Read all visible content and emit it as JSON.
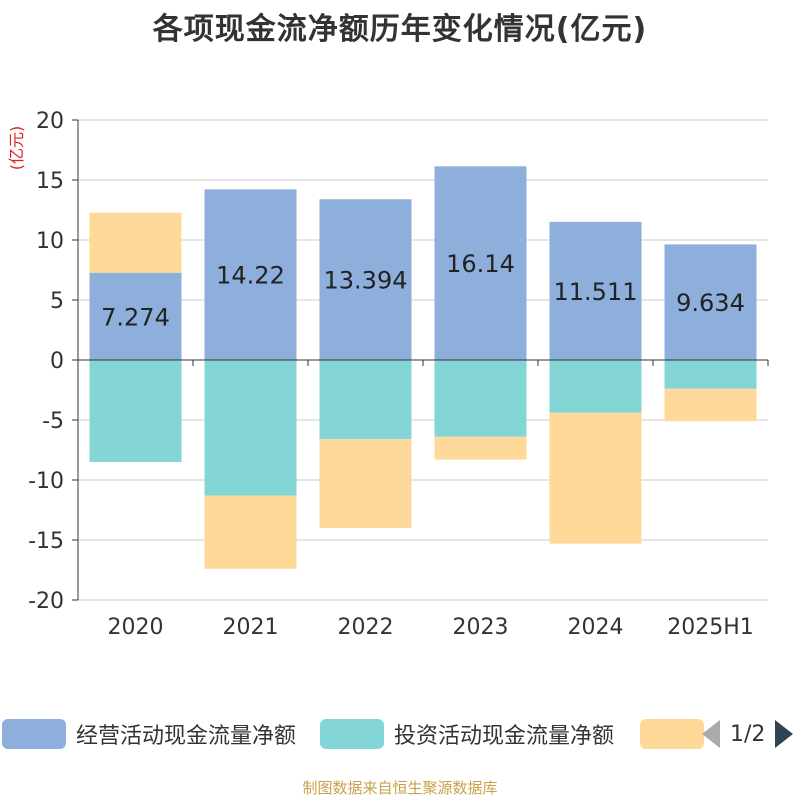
{
  "title": "各项现金流净额历年变化情况(亿元)",
  "footer": "制图数据来自恒生聚源数据库",
  "legend": {
    "items": [
      {
        "label": "经营活动现金流量净额",
        "color": "#8eaedb"
      },
      {
        "label": "投资活动现金流量净额",
        "color": "#84d5d6"
      },
      {
        "label": "",
        "color": "#fed99a"
      }
    ],
    "page_indicator": "1/2"
  },
  "chart_data": {
    "type": "bar",
    "stacked": true,
    "title": "各项现金流净额历年变化情况(亿元)",
    "ylabel": "(亿元)",
    "xlabel": "",
    "categories": [
      "2020",
      "2021",
      "2022",
      "2023",
      "2024",
      "2025H1"
    ],
    "ylim": [
      -20,
      20
    ],
    "yticks": [
      20,
      15,
      10,
      5,
      0,
      -5,
      -10,
      -15,
      -20
    ],
    "grid": true,
    "legend_position": "bottom",
    "series": [
      {
        "name": "经营活动现金流量净额",
        "color": "#8eaedb",
        "values": [
          7.274,
          14.22,
          13.394,
          16.14,
          11.511,
          9.634
        ],
        "show_labels": true
      },
      {
        "name": "投资活动现金流量净额",
        "color": "#84d5d6",
        "values": [
          -8.5,
          -11.3,
          -6.6,
          -6.4,
          -4.4,
          -2.4
        ],
        "show_labels": false
      },
      {
        "name": "",
        "color": "#fed99a",
        "values": [
          5.0,
          -6.1,
          -7.4,
          -1.9,
          -10.9,
          -2.7
        ],
        "show_labels": false
      }
    ]
  }
}
